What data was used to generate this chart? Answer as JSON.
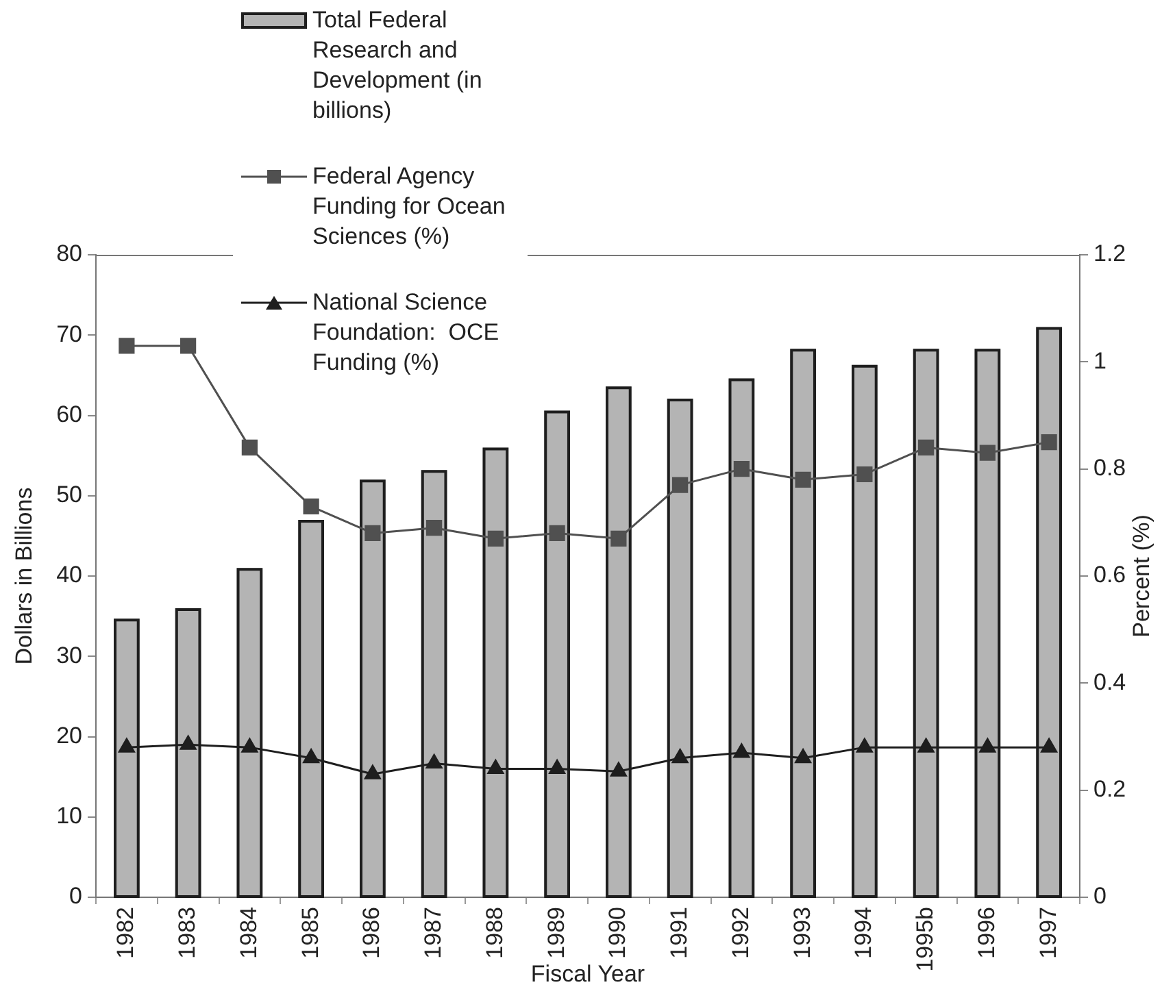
{
  "chart_data": {
    "type": "bar",
    "categories": [
      "1982",
      "1983",
      "1984",
      "1985",
      "1986",
      "1987",
      "1988",
      "1989",
      "1990",
      "1991",
      "1992",
      "1993",
      "1994",
      "1995b",
      "1996",
      "1997"
    ],
    "series": [
      {
        "name": "Total Federal Research and Development (in billions)",
        "color": "#b4b4b4",
        "values": [
          34.7,
          36,
          41,
          47,
          52,
          53.2,
          56,
          60.6,
          63.6,
          62.1,
          64.6,
          68.3,
          66.3,
          68.3,
          68.3,
          71
        ]
      },
      {
        "name": "Federal Agency Funding for Ocean Sciences (%)",
        "type": "line",
        "axis": "y2",
        "marker": "square",
        "color": "#505050",
        "values": [
          1.03,
          1.03,
          0.84,
          0.73,
          0.68,
          0.69,
          0.67,
          0.68,
          0.67,
          0.77,
          0.8,
          0.78,
          0.79,
          0.84,
          0.83,
          0.85
        ]
      },
      {
        "name": "National Science Foundation:  OCE Funding (%)",
        "type": "line",
        "axis": "y2",
        "marker": "triangle",
        "color": "#1e1e1e",
        "values": [
          0.28,
          0.285,
          0.28,
          0.26,
          0.23,
          0.25,
          0.24,
          0.24,
          0.235,
          0.26,
          0.27,
          0.26,
          0.28,
          0.28,
          0.28,
          0.28
        ]
      }
    ],
    "xlabel": "Fiscal Year",
    "ylabel": "Dollars in Billions",
    "y2label": "Percent (%)",
    "ylim": [
      0,
      80
    ],
    "yticks": [
      0,
      10,
      20,
      30,
      40,
      50,
      60,
      70,
      80
    ],
    "y2lim": [
      0,
      1.2
    ],
    "y2ticks": [
      0,
      0.2,
      0.4,
      0.6,
      0.8,
      1,
      1.2
    ],
    "legend": "top left"
  }
}
